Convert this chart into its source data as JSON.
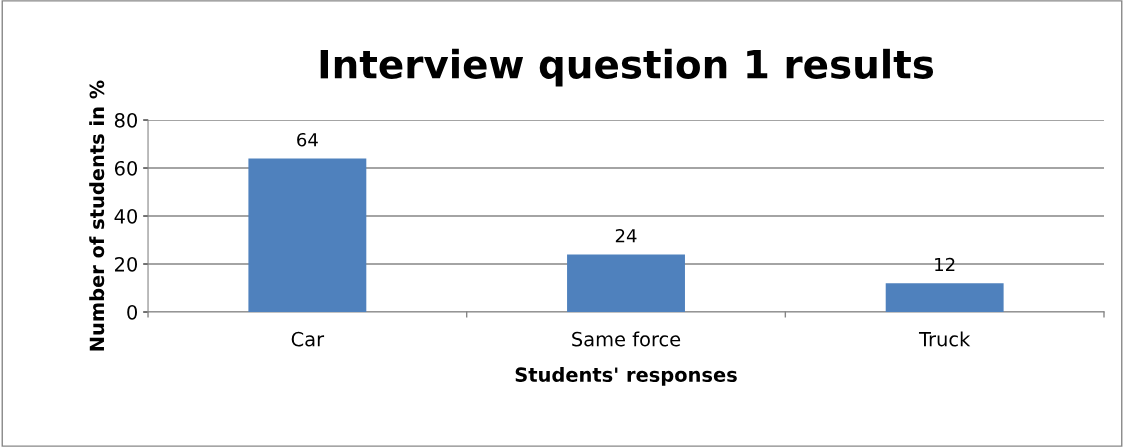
{
  "chart_data": {
    "type": "bar",
    "title": "Interview question 1 results",
    "xlabel": "Students' responses",
    "ylabel": "Number of students in %",
    "categories": [
      "Car",
      "Same force",
      "Truck"
    ],
    "values": [
      64,
      24,
      12
    ],
    "color": "#4f81bd",
    "ylim": [
      0,
      80
    ],
    "yticks": [
      0,
      20,
      40,
      60,
      80
    ],
    "grid": "y",
    "data_labels": true
  }
}
